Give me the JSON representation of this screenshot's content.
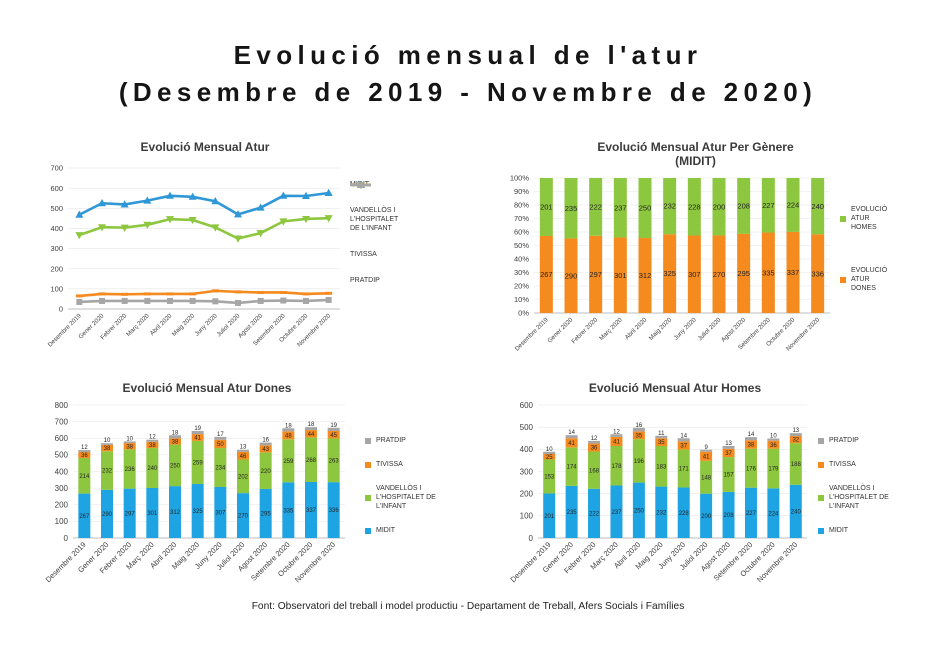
{
  "header": {
    "title_line1": "Evolució mensual de l'atur",
    "title_line2": "(Desembre de 2019 - Novembre de 2020)"
  },
  "footer": {
    "source": "Font: Observatori del treball i model productiu - Departament de Treball, Afers Socials i Famílies"
  },
  "chart_data": [
    {
      "type": "line",
      "title": "Evolució Mensual Atur",
      "ylim": [
        0,
        700
      ],
      "ystep": 100,
      "categories": [
        "Desembre 2019",
        "Gener 2020",
        "Febrer 2020",
        "Març 2020",
        "Abril 2020",
        "Maig 2020",
        "Juny 2020",
        "Juliol 2020",
        "Agost 2020",
        "Setembre 2020",
        "Octubre 2020",
        "Novembre 2020"
      ],
      "series": [
        {
          "name": "MIDIT",
          "color": "#2F97D6",
          "marker": "triangle-up",
          "values": [
            468,
            525,
            519,
            538,
            562,
            557,
            535,
            470,
            503,
            562,
            561,
            576
          ]
        },
        {
          "name": "VANDELLÒS I L'HOSPITALET DE L'INFANT",
          "color": "#8DC63F",
          "marker": "triangle-down",
          "values": [
            367,
            406,
            404,
            418,
            446,
            442,
            405,
            350,
            377,
            435,
            447,
            451
          ]
        },
        {
          "name": "TIVISSA",
          "color": "#F58A1F",
          "marker": "dash",
          "values": [
            65,
            75,
            73,
            75,
            75,
            75,
            90,
            85,
            82,
            82,
            75,
            78
          ]
        },
        {
          "name": "PRATDIP",
          "color": "#A6A6A6",
          "marker": "square",
          "values": [
            35,
            40,
            40,
            40,
            40,
            40,
            38,
            30,
            40,
            42,
            40,
            45
          ]
        }
      ]
    },
    {
      "type": "bar",
      "stacked": true,
      "normalized": true,
      "title": "Evolució Mensual Atur Per Gènere (MIDIT)",
      "ylim": [
        0,
        100
      ],
      "ystep": 10,
      "ytick_suffix": "%",
      "categories": [
        "Desembre 2019",
        "Gener 2020",
        "Febrer 2020",
        "Març 2020",
        "Abril 2020",
        "Maig 2020",
        "Juny 2020",
        "Juliol 2020",
        "Agost 2020",
        "Setembre 2020",
        "Octubre 2020",
        "Novembre 2020"
      ],
      "series": [
        {
          "name": "EVOLUCIÓ ATUR DONES",
          "color": "#F58A1F",
          "values": [
            267,
            290,
            297,
            301,
            312,
            325,
            307,
            270,
            295,
            335,
            337,
            336
          ]
        },
        {
          "name": "EVOLUCIÓ ATUR HOMES",
          "color": "#8DC63F",
          "values": [
            201,
            235,
            222,
            237,
            250,
            232,
            228,
            200,
            208,
            227,
            224,
            240
          ]
        }
      ]
    },
    {
      "type": "bar",
      "stacked": true,
      "normalized": false,
      "title": "Evolució Mensual Atur Dones",
      "ylim": [
        0,
        800
      ],
      "ystep": 100,
      "categories": [
        "Desembre 2019",
        "Gener 2020",
        "Febrer 2020",
        "Març 2020",
        "Abril 2020",
        "Maig 2020",
        "Juny 2020",
        "Juliol 2020",
        "Agost 2020",
        "Setembre 2020",
        "Octubre 2020",
        "Novembre 2020"
      ],
      "series": [
        {
          "name": "MIDIT",
          "color": "#1EA4E3",
          "values": [
            267,
            290,
            297,
            301,
            312,
            325,
            307,
            270,
            295,
            335,
            337,
            336
          ]
        },
        {
          "name": "VANDELLÒS I L'HOSPITALET DE L'INFANT",
          "color": "#8DC63F",
          "values": [
            214,
            232,
            236,
            240,
            250,
            259,
            234,
            202,
            220,
            259,
            268,
            263
          ]
        },
        {
          "name": "TIVISSA",
          "color": "#F58A1F",
          "values": [
            36,
            38,
            38,
            38,
            38,
            41,
            50,
            46,
            43,
            48,
            44,
            45
          ]
        },
        {
          "name": "PRATDIP",
          "color": "#A6A6A6",
          "values": [
            12,
            10,
            10,
            12,
            18,
            19,
            17,
            13,
            16,
            18,
            18,
            19
          ]
        }
      ]
    },
    {
      "type": "bar",
      "stacked": true,
      "normalized": false,
      "title": "Evolució Mensual Atur Homes",
      "ylim": [
        0,
        600
      ],
      "ystep": 100,
      "categories": [
        "Desembre 2019",
        "Gener 2020",
        "Febrer 2020",
        "Març 2020",
        "Abril 2020",
        "Maig 2020",
        "Juny 2020",
        "Juliol 2020",
        "Agost 2020",
        "Setembre 2020",
        "Octubre 2020",
        "Novembre 2020"
      ],
      "series": [
        {
          "name": "MIDIT",
          "color": "#1EA4E3",
          "values": [
            201,
            235,
            222,
            237,
            250,
            232,
            228,
            200,
            208,
            227,
            224,
            240
          ]
        },
        {
          "name": "VANDELLÒS I L'HOSPITALET DE L'INFANT",
          "color": "#8DC63F",
          "values": [
            153,
            174,
            168,
            178,
            196,
            183,
            171,
            148,
            157,
            176,
            179,
            188
          ]
        },
        {
          "name": "TIVISSA",
          "color": "#F58A1F",
          "values": [
            25,
            41,
            36,
            41,
            35,
            35,
            37,
            41,
            37,
            38,
            36,
            32
          ]
        },
        {
          "name": "PRATDIP",
          "color": "#A6A6A6",
          "values": [
            10,
            14,
            12,
            12,
            16,
            11,
            14,
            9,
            13,
            14,
            10,
            13
          ]
        }
      ]
    }
  ]
}
